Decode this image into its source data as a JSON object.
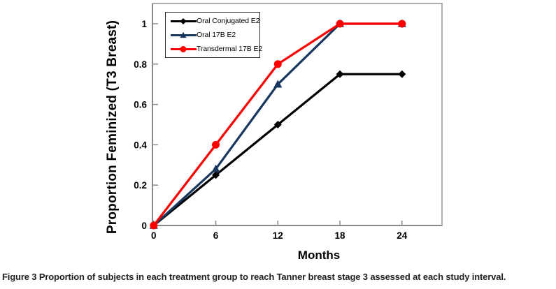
{
  "figure": {
    "caption_label": "Figure 3",
    "caption_text": " Proportion of subjects in each treatment group to reach Tanner breast stage 3 assessed at each study interval."
  },
  "chart_data": {
    "type": "line",
    "title": "",
    "xlabel": "Months",
    "ylabel": "Proportion Feminized (T3 Breast)",
    "x": [
      0,
      6,
      12,
      18,
      24
    ],
    "x_tick_labels": [
      "0",
      "6",
      "12",
      "18",
      "24"
    ],
    "y_ticks": [
      0,
      0.2,
      0.4,
      0.6,
      0.8,
      1
    ],
    "y_tick_labels": [
      "0",
      "0.2",
      "0.4",
      "0.6",
      "0.8",
      "1"
    ],
    "xlim": [
      0,
      28
    ],
    "ylim": [
      0,
      1.1
    ],
    "grid": false,
    "legend_position": "top-left-inside",
    "series": [
      {
        "name": "Oral Conjugated E2",
        "color": "#000000",
        "marker": "diamond",
        "values": [
          0,
          0.25,
          0.5,
          0.75,
          0.75
        ]
      },
      {
        "name": "Oral 17B E2",
        "color": "#17375E",
        "marker": "triangle",
        "values": [
          0,
          0.28,
          0.7,
          1,
          1
        ]
      },
      {
        "name": "Transdermal 17B E2",
        "color": "#FE0000",
        "marker": "circle",
        "values": [
          0,
          0.4,
          0.8,
          1,
          1
        ]
      }
    ],
    "axis_color": "#8a8a8a"
  }
}
